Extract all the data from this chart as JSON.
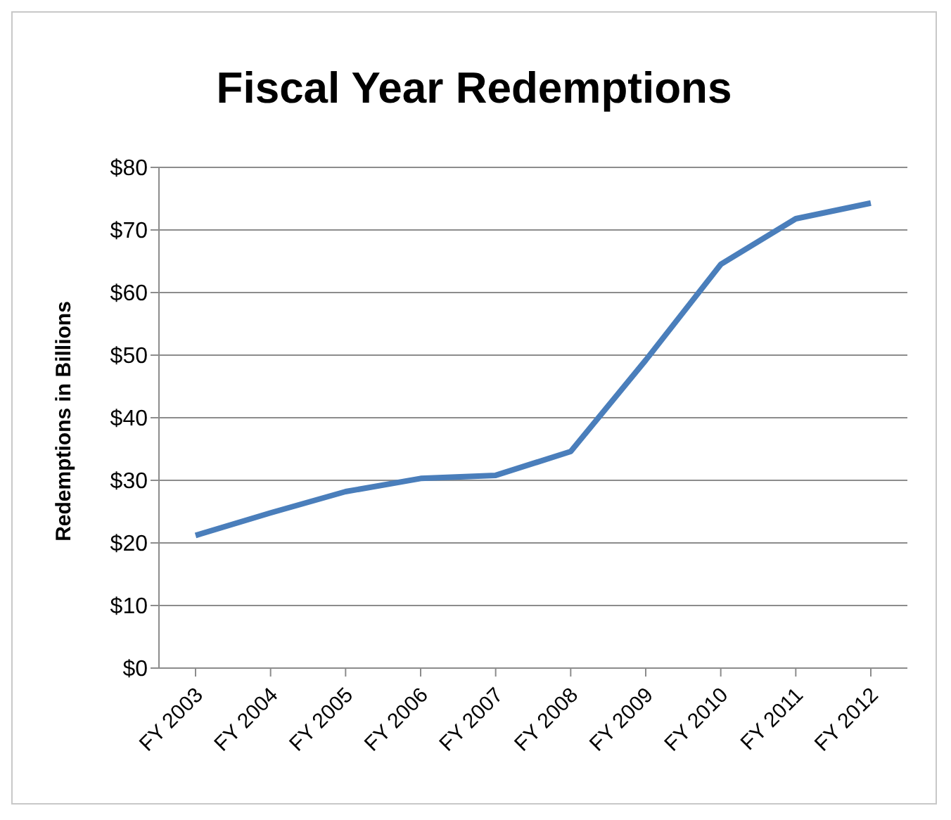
{
  "chart_data": {
    "type": "line",
    "title": "Fiscal Year Redemptions",
    "ylabel": "Redemptions in Billions",
    "categories": [
      "FY 2003",
      "FY 2004",
      "FY 2005",
      "FY 2006",
      "FY 2007",
      "FY 2008",
      "FY 2009",
      "FY 2010",
      "FY 2011",
      "FY 2012"
    ],
    "series": [
      {
        "color": "#4a7ebb",
        "values": [
          21.2,
          24.8,
          28.2,
          30.3,
          30.8,
          34.6,
          49.2,
          64.5,
          71.8,
          74.3
        ]
      }
    ],
    "ylim": [
      0,
      80
    ],
    "yticks": [
      {
        "value": 0,
        "label": "$0"
      },
      {
        "value": 10,
        "label": "$10"
      },
      {
        "value": 20,
        "label": "$20"
      },
      {
        "value": 30,
        "label": "$30"
      },
      {
        "value": 40,
        "label": "$40"
      },
      {
        "value": 50,
        "label": "$50"
      },
      {
        "value": 60,
        "label": "$60"
      },
      {
        "value": 70,
        "label": "$70"
      },
      {
        "value": 80,
        "label": "$80"
      }
    ],
    "grid": "y",
    "legend": false,
    "marker": "none",
    "line_style": "solid"
  }
}
